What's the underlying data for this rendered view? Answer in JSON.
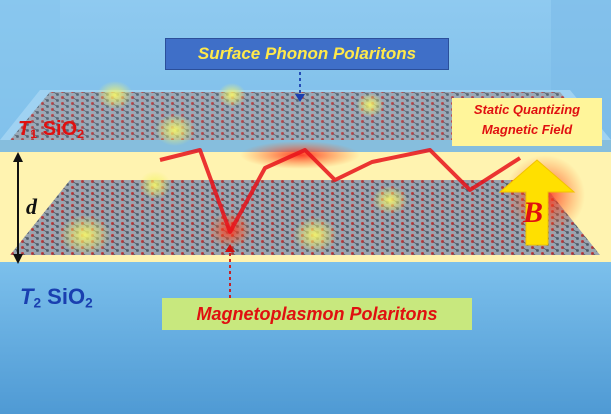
{
  "labels": {
    "top_caption": "Surface Phonon Polaritons",
    "t1_symbol": "T",
    "t1_subscript": "1",
    "t1_material": "SiO",
    "t1_material_subscript": "2",
    "field_line1": "Static Quantizing",
    "field_line2": "Magnetic Field",
    "gap_symbol": "d",
    "field_symbol": "B",
    "t2_symbol": "T",
    "t2_subscript": "2",
    "t2_material": "SiO",
    "t2_material_subscript": "2",
    "bottom_caption": "Magnetoplasmon Polaritons"
  },
  "colors": {
    "substrate": "#6fb6e4",
    "gap": "#fff3b0",
    "top_caption_box": "#3f6fc8",
    "top_caption_text": "#ffe94a",
    "field_box": "#fff59a",
    "field_text": "#e01010",
    "bottom_caption_box": "#c8e87e",
    "bottom_caption_text": "#e01010",
    "t1_label": "#e01010",
    "t2_label": "#1a3fb0",
    "arrow": "#ffe000",
    "wave": "#e8121a"
  }
}
